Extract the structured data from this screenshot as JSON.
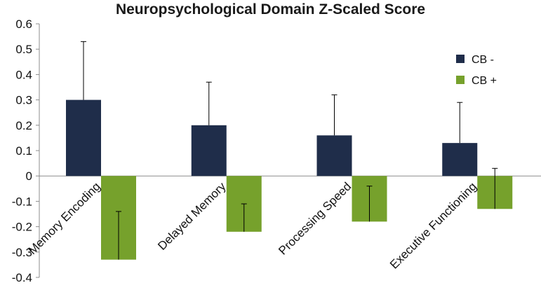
{
  "chart_data": {
    "type": "bar",
    "title": "Neuropsychological Domain Z-Scaled Score",
    "categories": [
      "Memory Encoding",
      "Delayed Memory",
      "Processing Speed",
      "Executive Functioning"
    ],
    "series": [
      {
        "name": "CB -",
        "color": "#1f2d4a",
        "values": [
          0.3,
          0.2,
          0.16,
          0.13
        ],
        "error_upper": [
          0.53,
          0.37,
          0.32,
          0.29
        ]
      },
      {
        "name": "CB +",
        "color": "#76a12c",
        "values": [
          -0.33,
          -0.22,
          -0.18,
          -0.13
        ],
        "error_lower": [
          -0.14,
          -0.11,
          -0.04,
          0.03
        ]
      }
    ],
    "ylim": [
      -0.4,
      0.6
    ],
    "yticks": [
      0.6,
      0.5,
      0.4,
      0.3,
      0.2,
      0.1,
      0,
      -0.1,
      -0.2,
      -0.3,
      -0.4
    ],
    "ytick_labels": [
      "0.6",
      "0.5",
      "0.4",
      "0.3",
      "0.2",
      "0.1",
      "0",
      "-0.1",
      "-0.2",
      "-0.3",
      "-0.4"
    ],
    "grid": false,
    "legend_position": "top-right",
    "xlabel": "",
    "ylabel": ""
  }
}
